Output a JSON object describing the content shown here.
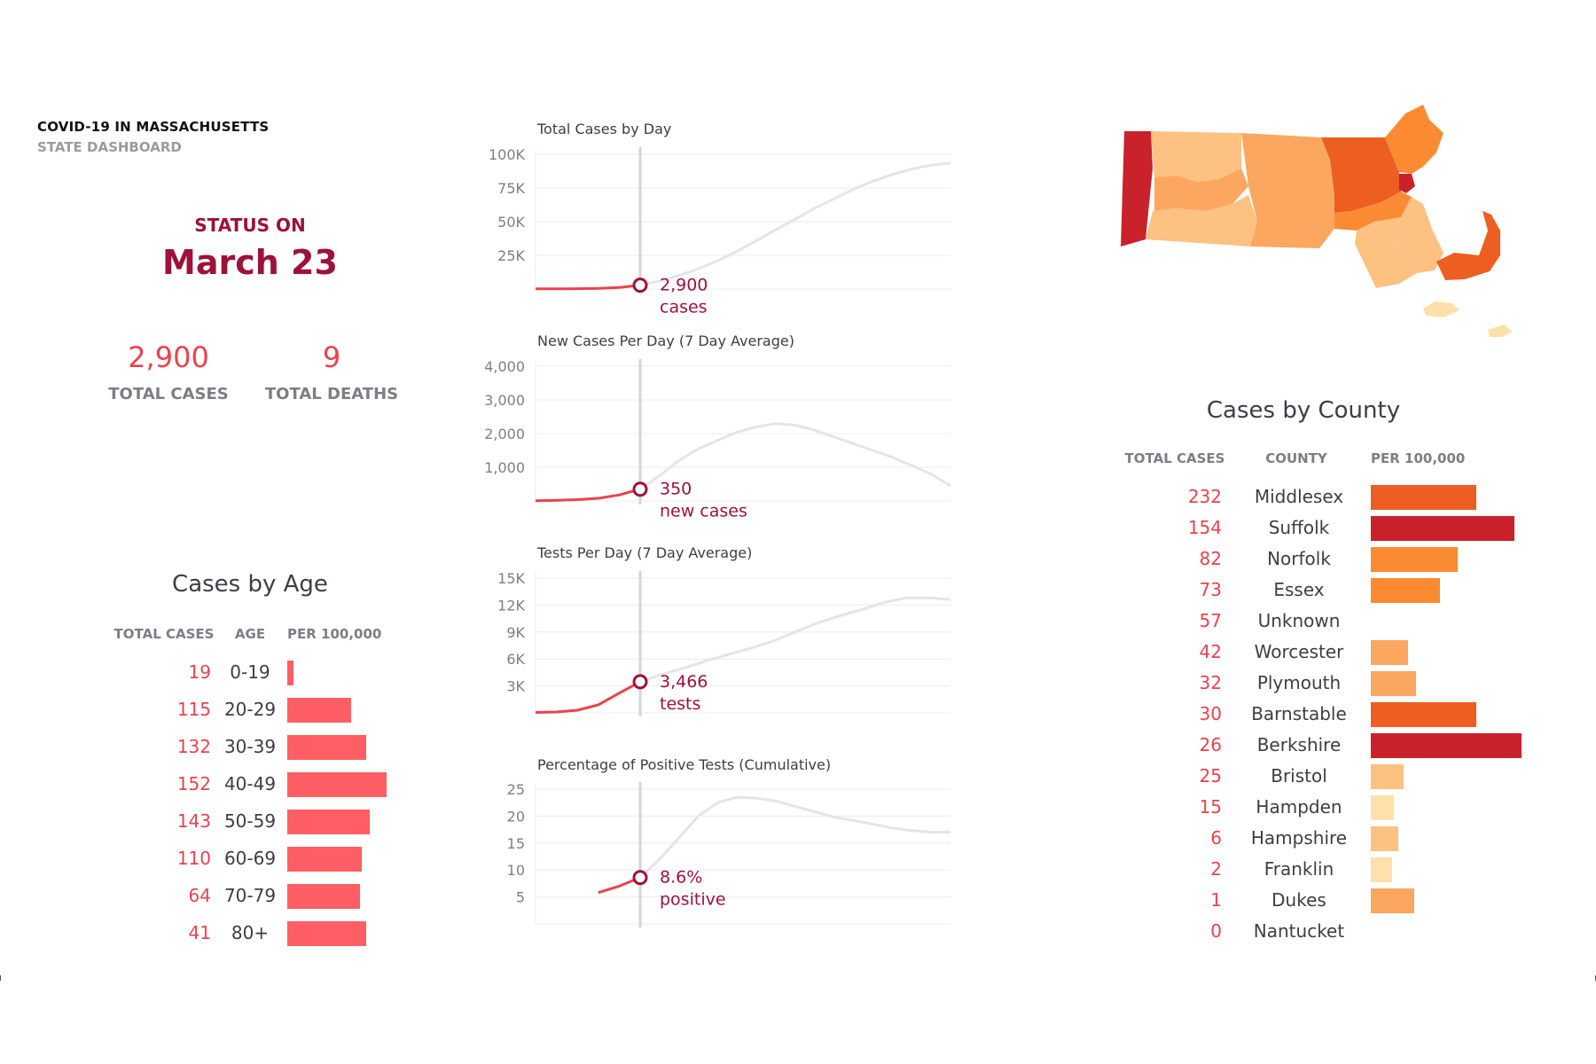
{
  "header": {
    "title": "COVID-19 IN MASSACHUSETTS",
    "subtitle": "STATE DASHBOARD"
  },
  "status": {
    "label": "STATUS ON",
    "date": "March 23"
  },
  "kpis": [
    {
      "value": "2,900",
      "label": "TOTAL CASES"
    },
    {
      "value": "9",
      "label": "TOTAL DEATHS"
    }
  ],
  "age_section": {
    "title": "Cases by Age",
    "columns": [
      "TOTAL CASES",
      "AGE",
      "PER 100,000"
    ]
  },
  "county_section": {
    "title": "Cases by County",
    "columns": [
      "TOTAL CASES",
      "COUNTY",
      "PER 100,000"
    ]
  },
  "colors": {
    "accent": "#9c1239",
    "case_red": "#e8434d",
    "age_bar": "#ff5f64",
    "grey_line": "#e4e4ec",
    "county_scale": [
      "#fde0ab",
      "#fdc182",
      "#fca75f",
      "#fb8b32",
      "#ec5f21",
      "#c9222a"
    ]
  },
  "chart_data": [
    {
      "type": "line",
      "title": "Total Cases by Day",
      "y_ticks": [
        "25K",
        "50K",
        "75K",
        "100K"
      ],
      "ylim": [
        0,
        100000
      ],
      "x": [
        0,
        1,
        2,
        3,
        4,
        5,
        6,
        7,
        8,
        9,
        10,
        11,
        12,
        13,
        14,
        15,
        16,
        17,
        18,
        19,
        20,
        21
      ],
      "current_index": 5,
      "series": [
        {
          "values": [
            100,
            150,
            250,
            500,
            1200,
            2900,
            6000,
            10000,
            15000,
            21000,
            28000,
            36000,
            44000,
            52000,
            60000,
            67000,
            74000,
            80000,
            85000,
            89000,
            92000,
            93500
          ]
        }
      ],
      "annotation": {
        "value": "2,900",
        "label": "cases"
      },
      "grid": true
    },
    {
      "type": "line",
      "title": "New Cases Per Day (7 Day Average)",
      "y_ticks": [
        "1,000",
        "2,000",
        "3,000",
        "4,000"
      ],
      "ylim": [
        0,
        4000
      ],
      "x": [
        0,
        1,
        2,
        3,
        4,
        5,
        6,
        7,
        8,
        9,
        10,
        11,
        12,
        13,
        14,
        15,
        16,
        17,
        18,
        19,
        20,
        21
      ],
      "current_index": 5,
      "series": [
        {
          "values": [
            5,
            20,
            40,
            80,
            180,
            350,
            750,
            1200,
            1550,
            1800,
            2050,
            2200,
            2300,
            2250,
            2100,
            1900,
            1700,
            1500,
            1300,
            1050,
            800,
            450
          ]
        }
      ],
      "annotation": {
        "value": "350",
        "label": "new cases"
      },
      "grid": true
    },
    {
      "type": "line",
      "title": "Tests Per Day (7 Day Average)",
      "y_ticks": [
        "3K",
        "6K",
        "9K",
        "12K",
        "15K"
      ],
      "ylim": [
        0,
        15000
      ],
      "x": [
        0,
        1,
        2,
        3,
        4,
        5,
        6,
        7,
        8,
        9,
        10,
        11,
        12,
        13,
        14,
        15,
        16,
        17,
        18,
        19
      ],
      "current_index": 5,
      "series": [
        {
          "values": [
            50,
            100,
            300,
            900,
            2200,
            3466,
            4300,
            5000,
            5800,
            6500,
            7200,
            8000,
            9000,
            10000,
            10800,
            11500,
            12300,
            12800,
            12800,
            12600
          ]
        }
      ],
      "annotation": {
        "value": "3,466",
        "label": "tests"
      },
      "grid": true
    },
    {
      "type": "line",
      "title": "Percentage of Positive Tests (Cumulative)",
      "y_ticks": [
        "5",
        "10",
        "15",
        "20",
        "25"
      ],
      "ylim": [
        0,
        25
      ],
      "x": [
        0,
        1,
        2,
        3,
        4,
        5,
        6,
        7,
        8,
        9,
        10,
        11,
        12,
        13,
        14,
        15,
        16,
        17,
        18,
        19,
        20,
        21
      ],
      "current_index": 5,
      "series": [
        {
          "values": [
            null,
            null,
            null,
            5.8,
            7.0,
            8.6,
            12,
            16,
            20,
            22.5,
            23.5,
            23.3,
            22.8,
            21.8,
            20.8,
            19.8,
            19.2,
            18.5,
            17.8,
            17.3,
            17.0,
            17.0
          ]
        }
      ],
      "annotation": {
        "value": "8.6%",
        "label": "positive"
      },
      "grid": true
    },
    {
      "type": "bar",
      "title": "Cases by Age",
      "categories": [
        "0-19",
        "20-29",
        "30-39",
        "40-49",
        "50-59",
        "60-69",
        "70-79",
        "80+"
      ],
      "total_cases": [
        19,
        115,
        132,
        152,
        143,
        110,
        64,
        41
      ],
      "per_100k": [
        4,
        41,
        51,
        64,
        53,
        48,
        47,
        51
      ]
    },
    {
      "type": "bar",
      "title": "Cases by County",
      "categories": [
        "Middlesex",
        "Suffolk",
        "Norfolk",
        "Essex",
        "Unknown",
        "Worcester",
        "Plymouth",
        "Barnstable",
        "Berkshire",
        "Bristol",
        "Hampden",
        "Hampshire",
        "Franklin",
        "Dukes",
        "Nantucket"
      ],
      "total_cases": [
        232,
        154,
        82,
        73,
        57,
        42,
        32,
        30,
        26,
        25,
        15,
        6,
        2,
        1,
        0
      ],
      "per_100k": [
        14,
        19,
        11.5,
        9.2,
        null,
        4.9,
        6.0,
        14,
        20,
        4.3,
        3.1,
        3.7,
        2.8,
        5.8,
        0
      ],
      "bar_colors": [
        "#ec5f21",
        "#c9222a",
        "#fb8b32",
        "#fb8b32",
        null,
        "#fca75f",
        "#fca75f",
        "#ec5f21",
        "#c9222a",
        "#fdc182",
        "#fde0ab",
        "#fdc182",
        "#fde0ab",
        "#fca75f",
        null
      ]
    }
  ]
}
